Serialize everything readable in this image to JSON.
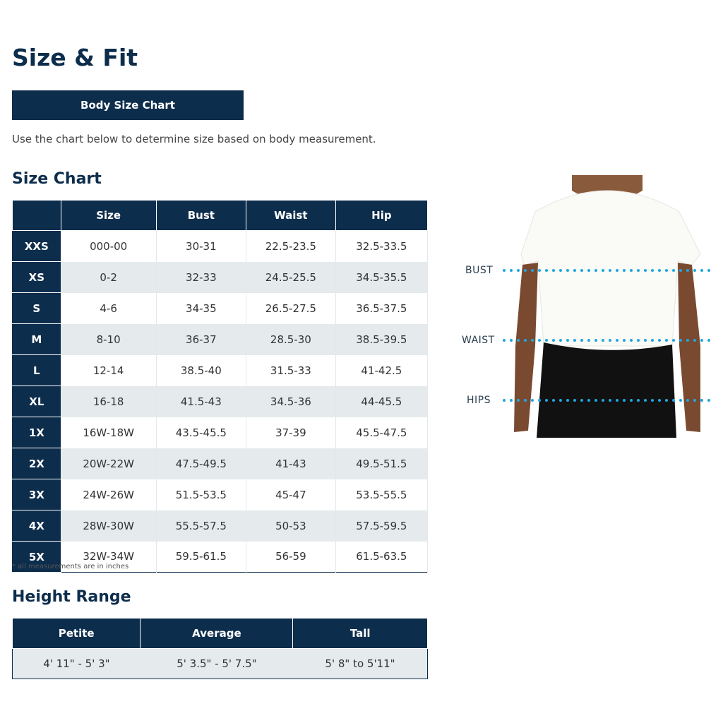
{
  "page_title": "Size & Fit",
  "body_size_button": "Body Size Chart",
  "intro": "Use the chart below to determine size based on body measurement.",
  "size_chart": {
    "title": "Size Chart",
    "headers": [
      "",
      "Size",
      "Bust",
      "Waist",
      "Hip"
    ],
    "rows": [
      [
        "XXS",
        "000-00",
        "30-31",
        "22.5-23.5",
        "32.5-33.5"
      ],
      [
        "XS",
        "0-2",
        "32-33",
        "24.5-25.5",
        "34.5-35.5"
      ],
      [
        "S",
        "4-6",
        "34-35",
        "26.5-27.5",
        "36.5-37.5"
      ],
      [
        "M",
        "8-10",
        "36-37",
        "28.5-30",
        "38.5-39.5"
      ],
      [
        "L",
        "12-14",
        "38.5-40",
        "31.5-33",
        "41-42.5"
      ],
      [
        "XL",
        "16-18",
        "41.5-43",
        "34.5-36",
        "44-45.5"
      ],
      [
        "1X",
        "16W-18W",
        "43.5-45.5",
        "37-39",
        "45.5-47.5"
      ],
      [
        "2X",
        "20W-22W",
        "47.5-49.5",
        "41-43",
        "49.5-51.5"
      ],
      [
        "3X",
        "24W-26W",
        "51.5-53.5",
        "45-47",
        "53.5-55.5"
      ],
      [
        "4X",
        "28W-30W",
        "55.5-57.5",
        "50-53",
        "57.5-59.5"
      ],
      [
        "5X",
        "32W-34W",
        "59.5-61.5",
        "56-59",
        "61.5-63.5"
      ]
    ],
    "footnote": "* all measurements are in inches"
  },
  "height_range": {
    "title": "Height Range",
    "headers": [
      "Petite",
      "Average",
      "Tall"
    ],
    "values": [
      "4' 11\" - 5' 3\"",
      "5' 3.5\" - 5' 7.5\"",
      "5' 8\" to 5'11\""
    ]
  },
  "figure": {
    "labels": {
      "bust": "BUST",
      "waist": "WAIST",
      "hips": "HIPS"
    },
    "dot_color": "#1ea7e0"
  },
  "colors": {
    "navy": "#0d2d4c",
    "alt_row": "#e5eaec"
  }
}
